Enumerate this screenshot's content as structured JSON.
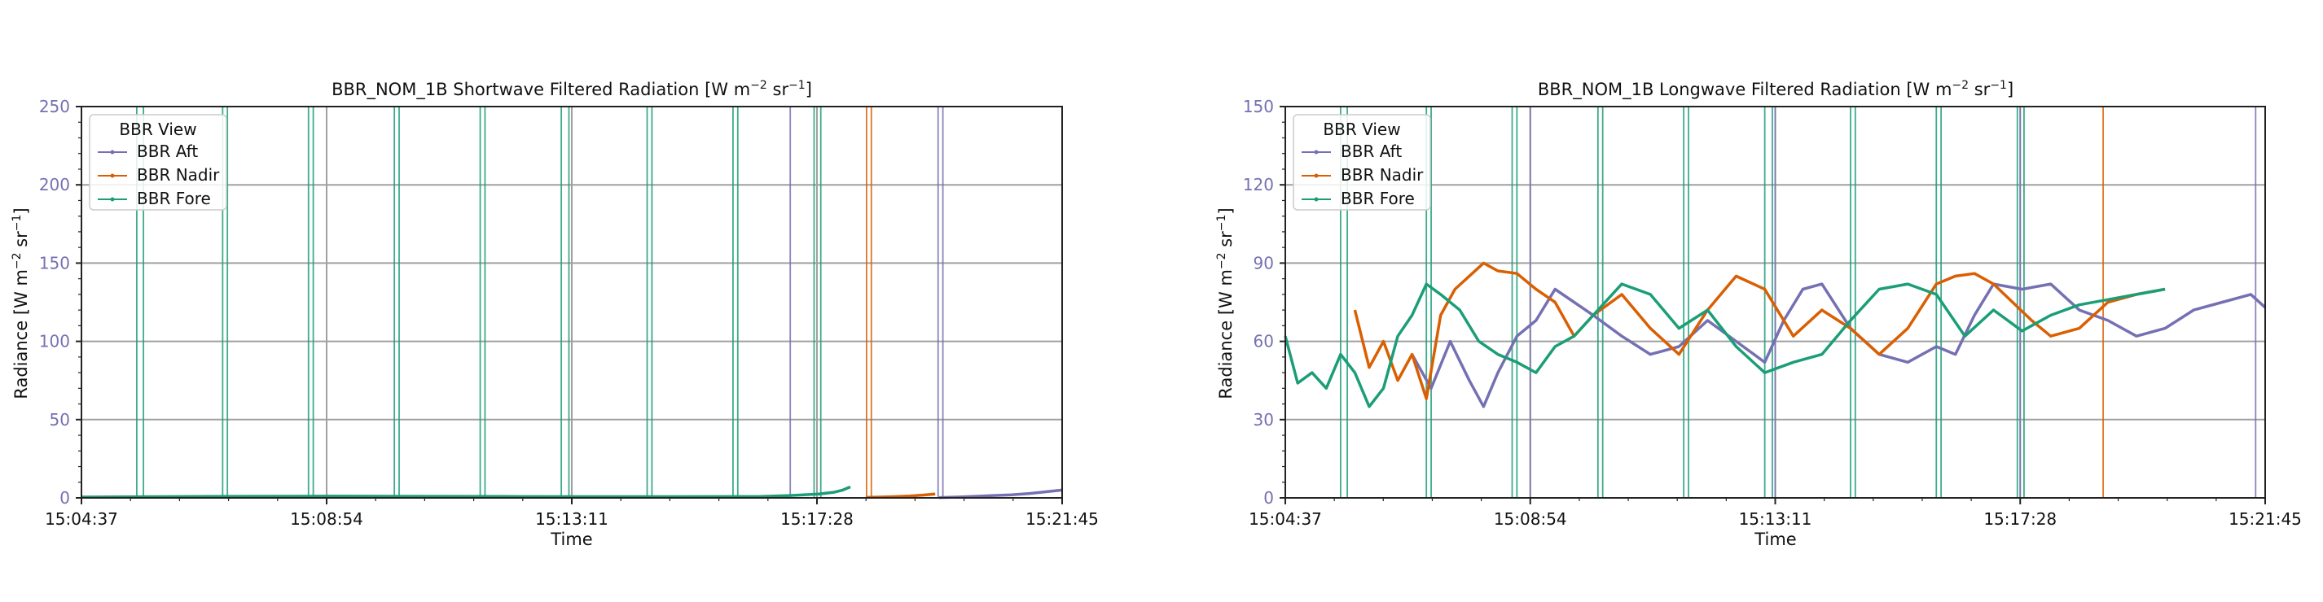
{
  "colors": {
    "aft": "#7570b3",
    "nadir": "#d95f02",
    "fore": "#1b9e77",
    "grid": "#a0a0a0",
    "ytick": "#7570b3"
  },
  "legend": {
    "title": "BBR View",
    "items": [
      "BBR Aft",
      "BBR Nadir",
      "BBR Fore"
    ],
    "placement": "upper-left"
  },
  "chart_data": [
    {
      "type": "line",
      "title_pre": "BBR_NOM_1B Shortwave Filtered Radiation [W m",
      "title_mid": " sr",
      "title_post": "]",
      "title_exp1": "−2",
      "title_exp2": "−1",
      "ylabel_pre": "Radiance [W m",
      "ylabel_mid": " sr",
      "ylabel_post": "]",
      "ylabel_exp1": "−2",
      "ylabel_exp2": "−1",
      "xlabel": "Time",
      "xlim": [
        "15:04:37",
        "15:21:45"
      ],
      "xticks": [
        "15:04:37",
        "15:08:54",
        "15:13:11",
        "15:17:28",
        "15:21:45"
      ],
      "ylim": [
        0,
        250
      ],
      "yticks": [
        "0",
        "50",
        "100",
        "150",
        "200",
        "250"
      ],
      "grid": true,
      "series": [
        {
          "name": "BBR Aft",
          "x": [
            "15:19:36",
            "15:19:55",
            "15:20:14",
            "15:20:33",
            "15:20:52",
            "15:21:11",
            "15:21:30",
            "15:21:45"
          ],
          "y": [
            0.2,
            0.5,
            1.0,
            1.5,
            2.0,
            2.8,
            4.0,
            5.0
          ]
        },
        {
          "name": "BBR Nadir",
          "x": [
            "15:18:20",
            "15:18:35",
            "15:18:50",
            "15:19:05",
            "15:19:20",
            "15:19:32"
          ],
          "y": [
            0.3,
            0.5,
            0.8,
            1.2,
            1.8,
            2.5
          ]
        },
        {
          "name": "BBR Fore",
          "x": [
            "15:04:37",
            "15:06:00",
            "15:07:30",
            "15:09:00",
            "15:10:30",
            "15:12:00",
            "15:13:30",
            "15:15:00",
            "15:16:30",
            "15:17:00",
            "15:17:30",
            "15:17:45",
            "15:17:55",
            "15:18:03"
          ],
          "y": [
            0.5,
            0.8,
            1.0,
            1.1,
            1.0,
            0.9,
            0.8,
            0.8,
            0.9,
            1.5,
            2.5,
            3.5,
            5.0,
            7.0
          ]
        }
      ],
      "spikes": {
        "fore": [
          "15:05:35",
          "15:05:42",
          "15:07:05",
          "15:07:10",
          "15:08:35",
          "15:08:40",
          "15:10:05",
          "15:10:10",
          "15:11:35",
          "15:11:40",
          "15:13:00",
          "15:13:08",
          "15:14:30",
          "15:14:35",
          "15:16:00",
          "15:16:05",
          "15:17:25",
          "15:17:32"
        ],
        "aft": [
          "15:17:00",
          "15:19:35",
          "15:19:40"
        ],
        "nadir": [
          "15:18:20",
          "15:18:25"
        ]
      }
    },
    {
      "type": "line",
      "title_pre": "BBR_NOM_1B Longwave Filtered Radiation [W m",
      "title_mid": " sr",
      "title_post": "]",
      "title_exp1": "−2",
      "title_exp2": "−1",
      "ylabel_pre": "Radiance [W m",
      "ylabel_mid": " sr",
      "ylabel_post": "]",
      "ylabel_exp1": "−2",
      "ylabel_exp2": "−1",
      "xlabel": "Time",
      "xlim": [
        "15:04:37",
        "15:21:45"
      ],
      "xticks": [
        "15:04:37",
        "15:08:54",
        "15:13:11",
        "15:17:28",
        "15:21:45"
      ],
      "ylim": [
        0,
        150
      ],
      "yticks": [
        "0",
        "30",
        "60",
        "90",
        "120",
        "150"
      ],
      "grid": true,
      "series": [
        {
          "name": "BBR Aft",
          "x": [
            "15:06:50",
            "15:07:10",
            "15:07:30",
            "15:07:50",
            "15:08:05",
            "15:08:20",
            "15:08:40",
            "15:09:00",
            "15:09:20",
            "15:09:40",
            "15:10:00",
            "15:10:30",
            "15:11:00",
            "15:11:30",
            "15:12:00",
            "15:12:30",
            "15:13:00",
            "15:13:20",
            "15:13:40",
            "15:14:00",
            "15:14:30",
            "15:15:00",
            "15:15:30",
            "15:16:00",
            "15:16:20",
            "15:16:40",
            "15:17:00",
            "15:17:30",
            "15:18:00",
            "15:18:30",
            "15:19:00",
            "15:19:30",
            "15:20:00",
            "15:20:30",
            "15:21:00",
            "15:21:30",
            "15:21:45"
          ],
          "y": [
            55,
            42,
            60,
            45,
            35,
            48,
            62,
            68,
            80,
            75,
            70,
            62,
            55,
            58,
            68,
            60,
            52,
            68,
            80,
            82,
            65,
            55,
            52,
            58,
            55,
            70,
            82,
            80,
            82,
            72,
            68,
            62,
            65,
            72,
            75,
            78,
            73
          ]
        },
        {
          "name": "BBR Nadir",
          "x": [
            "15:05:50",
            "15:06:05",
            "15:06:20",
            "15:06:35",
            "15:06:50",
            "15:07:05",
            "15:07:20",
            "15:07:35",
            "15:07:50",
            "15:08:05",
            "15:08:20",
            "15:08:40",
            "15:09:00",
            "15:09:20",
            "15:09:40",
            "15:10:00",
            "15:10:30",
            "15:11:00",
            "15:11:30",
            "15:12:00",
            "15:12:30",
            "15:13:00",
            "15:13:30",
            "15:14:00",
            "15:14:30",
            "15:15:00",
            "15:15:30",
            "15:16:00",
            "15:16:20",
            "15:16:40",
            "15:17:00",
            "15:17:20",
            "15:17:40",
            "15:18:00",
            "15:18:30",
            "15:19:00",
            "15:19:30",
            "15:20:00"
          ],
          "y": [
            72,
            50,
            60,
            45,
            55,
            38,
            70,
            80,
            85,
            90,
            87,
            86,
            80,
            75,
            62,
            70,
            78,
            65,
            55,
            72,
            85,
            80,
            62,
            72,
            65,
            55,
            65,
            82,
            85,
            86,
            82,
            75,
            68,
            62,
            65,
            75,
            78,
            80
          ]
        },
        {
          "name": "BBR Fore",
          "x": [
            "15:04:37",
            "15:04:50",
            "15:05:05",
            "15:05:20",
            "15:05:35",
            "15:05:50",
            "15:06:05",
            "15:06:20",
            "15:06:35",
            "15:06:50",
            "15:07:05",
            "15:07:20",
            "15:07:40",
            "15:08:00",
            "15:08:20",
            "15:08:40",
            "15:09:00",
            "15:09:20",
            "15:09:40",
            "15:10:00",
            "15:10:30",
            "15:11:00",
            "15:11:30",
            "15:12:00",
            "15:12:30",
            "15:13:00",
            "15:13:30",
            "15:14:00",
            "15:14:30",
            "15:15:00",
            "15:15:30",
            "15:16:00",
            "15:16:30",
            "15:17:00",
            "15:17:30",
            "15:18:00",
            "15:18:30",
            "15:19:00",
            "15:19:30",
            "15:20:00"
          ],
          "y": [
            62,
            44,
            48,
            42,
            55,
            48,
            35,
            42,
            62,
            70,
            82,
            78,
            72,
            60,
            55,
            52,
            48,
            58,
            62,
            70,
            82,
            78,
            65,
            72,
            58,
            48,
            52,
            55,
            68,
            80,
            82,
            78,
            62,
            72,
            64,
            70,
            74,
            76,
            78,
            80
          ]
        }
      ],
      "spikes": {
        "fore": [
          "15:05:35",
          "15:05:42",
          "15:07:05",
          "15:07:10",
          "15:08:35",
          "15:08:40",
          "15:10:05",
          "15:10:10",
          "15:11:35",
          "15:11:40",
          "15:13:00",
          "15:13:08",
          "15:14:30",
          "15:14:35",
          "15:16:00",
          "15:16:05",
          "15:17:25",
          "15:17:32"
        ],
        "aft": [
          "15:08:54",
          "15:13:11",
          "15:17:28",
          "15:21:35"
        ],
        "nadir": [
          "15:18:55"
        ]
      }
    }
  ]
}
